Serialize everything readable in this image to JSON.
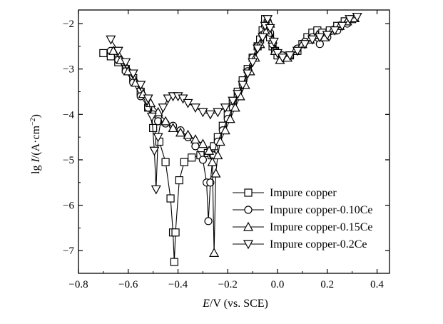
{
  "chart_data": {
    "type": "line",
    "xlabel_italic": "E",
    "xlabel_rest": "/V (vs. SCE)",
    "ylabel_prefix": "lg ",
    "ylabel_italic": "I",
    "ylabel_rest": "/(A·cm",
    "ylabel_sup": "−2",
    "ylabel_close": ")",
    "xlim": [
      -0.8,
      0.45
    ],
    "ylim": [
      -7.5,
      -1.7
    ],
    "xticks": [
      -0.8,
      -0.6,
      -0.4,
      -0.2,
      0.0,
      0.2,
      0.4
    ],
    "xtick_labels": [
      "−0.8",
      "−0.6",
      "−0.4",
      "−0.2",
      "0.0",
      "0.2",
      "0.4"
    ],
    "yticks": [
      -7,
      -6,
      -5,
      -4,
      -3,
      -2
    ],
    "ytick_labels": [
      "−7",
      "−6",
      "−5",
      "−4",
      "−3",
      "−2"
    ],
    "legend_position": "lower-right",
    "series": [
      {
        "name": "Impure copper",
        "marker": "square",
        "x": [
          -0.7,
          -0.67,
          -0.64,
          -0.61,
          -0.58,
          -0.55,
          -0.52,
          -0.5,
          -0.475,
          -0.45,
          -0.43,
          -0.42,
          -0.415,
          -0.41,
          -0.395,
          -0.375,
          -0.345,
          -0.31,
          -0.28,
          -0.265,
          -0.255,
          -0.24,
          -0.22,
          -0.2,
          -0.18,
          -0.16,
          -0.14,
          -0.12,
          -0.1,
          -0.08,
          -0.07,
          -0.06,
          -0.05,
          -0.04,
          -0.03,
          -0.02,
          -0.01,
          0.0,
          0.02,
          0.05,
          0.08,
          0.1,
          0.12,
          0.14,
          0.16,
          0.18,
          0.21,
          0.24,
          0.27,
          0.3
        ],
        "y": [
          -2.65,
          -2.72,
          -2.85,
          -3.0,
          -3.2,
          -3.5,
          -3.85,
          -4.3,
          -4.6,
          -5.05,
          -5.85,
          -6.6,
          -7.25,
          -6.6,
          -5.45,
          -5.05,
          -4.95,
          -4.9,
          -4.85,
          -4.9,
          -4.7,
          -4.5,
          -4.25,
          -4.0,
          -3.75,
          -3.5,
          -3.25,
          -3.0,
          -2.75,
          -2.5,
          -2.35,
          -2.15,
          -1.9,
          -2.0,
          -2.3,
          -2.5,
          -2.6,
          -2.7,
          -2.75,
          -2.7,
          -2.6,
          -2.45,
          -2.3,
          -2.2,
          -2.15,
          -2.2,
          -2.15,
          -2.05,
          -1.95,
          -1.9
        ]
      },
      {
        "name": "Impure copper-0.10Ce",
        "marker": "circle",
        "x": [
          -0.67,
          -0.64,
          -0.61,
          -0.58,
          -0.55,
          -0.52,
          -0.5,
          -0.48,
          -0.45,
          -0.42,
          -0.39,
          -0.36,
          -0.33,
          -0.3,
          -0.285,
          -0.278,
          -0.27,
          -0.26,
          -0.24,
          -0.22,
          -0.2,
          -0.18,
          -0.16,
          -0.14,
          -0.12,
          -0.1,
          -0.08,
          -0.06,
          -0.05,
          -0.04,
          -0.03,
          -0.02,
          -0.01,
          0.02,
          0.05,
          0.08,
          0.11,
          0.14,
          0.17,
          0.2,
          0.24,
          0.28
        ],
        "y": [
          -2.6,
          -2.8,
          -3.05,
          -3.3,
          -3.6,
          -3.85,
          -4.0,
          -4.15,
          -4.2,
          -4.25,
          -4.35,
          -4.5,
          -4.7,
          -5.0,
          -5.5,
          -6.35,
          -5.5,
          -4.9,
          -4.6,
          -4.35,
          -4.1,
          -3.85,
          -3.6,
          -3.35,
          -3.05,
          -2.75,
          -2.5,
          -2.25,
          -2.05,
          -1.95,
          -2.2,
          -2.45,
          -2.6,
          -2.7,
          -2.7,
          -2.55,
          -2.4,
          -2.3,
          -2.45,
          -2.3,
          -2.15,
          -2.0
        ]
      },
      {
        "name": "Impure copper-0.15Ce",
        "marker": "triangle-up",
        "x": [
          -0.66,
          -0.63,
          -0.6,
          -0.57,
          -0.54,
          -0.51,
          -0.48,
          -0.45,
          -0.42,
          -0.39,
          -0.36,
          -0.33,
          -0.3,
          -0.275,
          -0.262,
          -0.255,
          -0.248,
          -0.24,
          -0.23,
          -0.21,
          -0.19,
          -0.17,
          -0.15,
          -0.13,
          -0.11,
          -0.09,
          -0.07,
          -0.05,
          -0.04,
          -0.03,
          -0.02,
          -0.01,
          0.01,
          0.04,
          0.07,
          0.1,
          0.13,
          0.16,
          0.19,
          0.22,
          0.25,
          0.28,
          0.31
        ],
        "y": [
          -2.6,
          -2.8,
          -3.05,
          -3.3,
          -3.55,
          -3.75,
          -3.95,
          -4.15,
          -4.3,
          -4.4,
          -4.45,
          -4.55,
          -4.65,
          -4.8,
          -5.05,
          -7.05,
          -5.3,
          -4.9,
          -4.6,
          -4.35,
          -4.1,
          -3.85,
          -3.6,
          -3.35,
          -3.05,
          -2.75,
          -2.45,
          -2.15,
          -1.95,
          -2.0,
          -2.35,
          -2.6,
          -2.8,
          -2.75,
          -2.6,
          -2.45,
          -2.35,
          -2.25,
          -2.3,
          -2.15,
          -2.05,
          -1.95,
          -1.88
        ]
      },
      {
        "name": "Impure copper-0.2Ce",
        "marker": "triangle-down",
        "x": [
          -0.67,
          -0.64,
          -0.61,
          -0.58,
          -0.55,
          -0.52,
          -0.505,
          -0.495,
          -0.488,
          -0.48,
          -0.46,
          -0.44,
          -0.42,
          -0.4,
          -0.38,
          -0.36,
          -0.33,
          -0.3,
          -0.27,
          -0.24,
          -0.21,
          -0.18,
          -0.16,
          -0.14,
          -0.12,
          -0.1,
          -0.08,
          -0.06,
          -0.05,
          -0.04,
          -0.03,
          -0.015,
          0.0,
          0.02,
          0.05,
          0.08,
          0.11,
          0.14,
          0.17,
          0.2,
          0.23,
          0.26,
          0.29,
          0.32
        ],
        "y": [
          -2.35,
          -2.6,
          -2.85,
          -3.1,
          -3.35,
          -3.65,
          -4.05,
          -4.8,
          -5.65,
          -4.5,
          -3.85,
          -3.65,
          -3.6,
          -3.6,
          -3.65,
          -3.75,
          -3.85,
          -3.95,
          -4.0,
          -3.95,
          -3.85,
          -3.7,
          -3.55,
          -3.35,
          -3.1,
          -2.85,
          -2.55,
          -2.3,
          -2.05,
          -1.9,
          -2.1,
          -2.4,
          -2.65,
          -2.75,
          -2.7,
          -2.6,
          -2.45,
          -2.35,
          -2.3,
          -2.25,
          -2.15,
          -2.05,
          -1.9,
          -1.85
        ]
      }
    ]
  }
}
